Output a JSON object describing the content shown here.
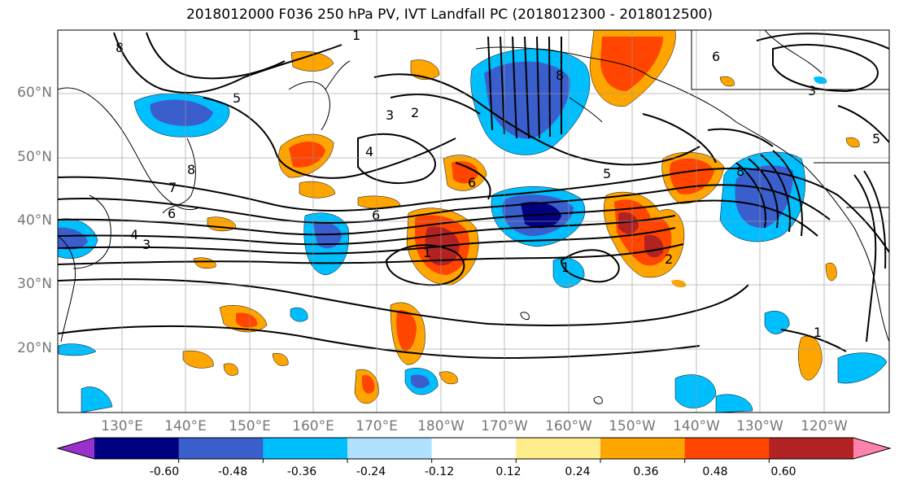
{
  "title": "2018012000 F036 250 hPa PV, IVT Landfall PC (2018012300 - 2018012500)",
  "latitude_labels": [
    "60°N",
    "50°N",
    "40°N",
    "30°N",
    "20°N"
  ],
  "longitude_labels": [
    "130°E",
    "140°E",
    "150°E",
    "160°E",
    "170°E",
    "180°W",
    "170°W",
    "160°W",
    "150°W",
    "140°W",
    "130°W",
    "120°W"
  ],
  "contour_labels": [
    "1",
    "2",
    "3",
    "4",
    "5",
    "6",
    "7",
    "8"
  ],
  "colorbar": {
    "tick_labels": [
      "-0.60",
      "-0.48",
      "-0.36",
      "-0.24",
      "-0.12",
      "0.12",
      "0.24",
      "0.36",
      "0.48",
      "0.60"
    ],
    "colors": [
      "#9932cc",
      "#000080",
      "#3a5fcd",
      "#00bfff",
      "#b0e2ff",
      "#ffffff",
      "#ffec8b",
      "#ffa500",
      "#ff4500",
      "#b22222",
      "#ff82ab"
    ]
  }
}
